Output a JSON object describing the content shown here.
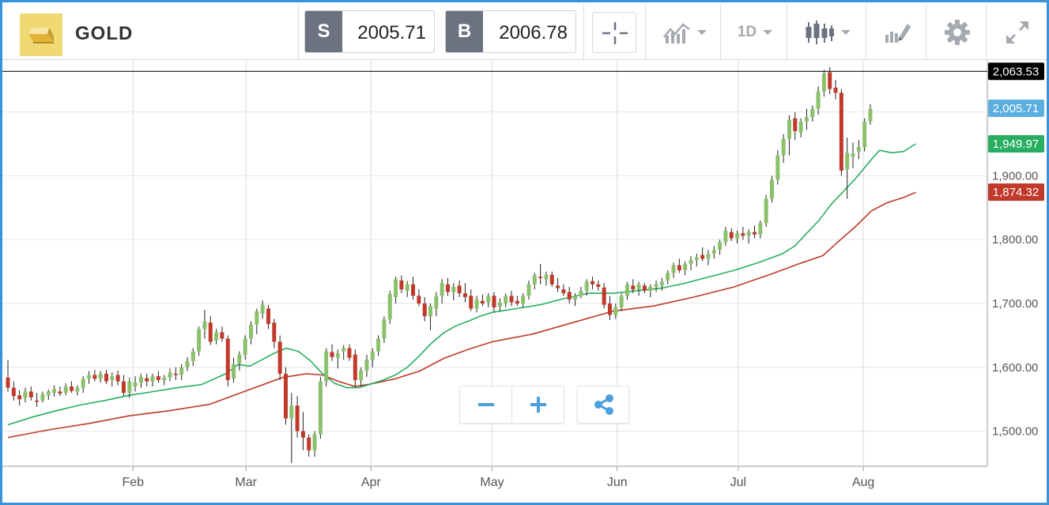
{
  "header": {
    "symbol": "GOLD",
    "sell_label": "S",
    "sell_price": "2005.71",
    "buy_label": "B",
    "buy_price": "2006.78",
    "timeframe": "1D",
    "icons": [
      "gold-bar-icon",
      "crosshair-icon",
      "indicators-icon",
      "candlestick-type-icon",
      "drawing-tools-icon",
      "gear-icon",
      "fullscreen-icon"
    ]
  },
  "price_labels": {
    "high": "2,063.53",
    "current": "2,005.71",
    "ma_fast": "1,949.97",
    "ma_slow": "1,874.32"
  },
  "colors": {
    "frame": "#3a93d8",
    "bull": "#8ac16a",
    "bear": "#c0392b",
    "ma_fast": "#27ae60",
    "ma_slow": "#c0392b",
    "label_high": "#000000",
    "label_current": "#5aaee0",
    "label_ma_fast": "#27ae60",
    "label_ma_slow": "#c0392b",
    "accent": "#4a9fdc"
  },
  "controls": {
    "zoom_out": "zoom-out-icon",
    "zoom_in": "zoom-in-icon",
    "share": "share-icon"
  },
  "chart_data": {
    "type": "candlestick",
    "ylim": [
      1445,
      2080
    ],
    "y_ticks": [
      "1,500.00",
      "1,600.00",
      "1,700.00",
      "1,800.00",
      "1,900.00"
    ],
    "y_tick_values": [
      1500,
      1600,
      1700,
      1800,
      1900
    ],
    "x_ticks": [
      "Feb",
      "Mar",
      "Apr",
      "May",
      "Jun",
      "Jul",
      "Aug"
    ],
    "x_tick_days": [
      31,
      59,
      90,
      120,
      151,
      181,
      212
    ],
    "grid": true,
    "horizontal_line": 2063.53,
    "candle_open_day": 0,
    "candle_step_days": 1.4345,
    "candles": [
      [
        1584,
        1612,
        1562,
        1568
      ],
      [
        1568,
        1578,
        1548,
        1555
      ],
      [
        1556,
        1564,
        1540,
        1550
      ],
      [
        1552,
        1568,
        1545,
        1562
      ],
      [
        1562,
        1570,
        1548,
        1553
      ],
      [
        1548,
        1560,
        1538,
        1546
      ],
      [
        1548,
        1562,
        1545,
        1558
      ],
      [
        1556,
        1565,
        1549,
        1562
      ],
      [
        1560,
        1572,
        1554,
        1566
      ],
      [
        1562,
        1570,
        1555,
        1559
      ],
      [
        1560,
        1575,
        1556,
        1570
      ],
      [
        1570,
        1578,
        1560,
        1563
      ],
      [
        1562,
        1572,
        1556,
        1568
      ],
      [
        1568,
        1586,
        1560,
        1582
      ],
      [
        1582,
        1594,
        1574,
        1588
      ],
      [
        1588,
        1596,
        1578,
        1582
      ],
      [
        1582,
        1594,
        1576,
        1590
      ],
      [
        1590,
        1596,
        1574,
        1578
      ],
      [
        1580,
        1592,
        1570,
        1586
      ],
      [
        1588,
        1595,
        1572,
        1578
      ],
      [
        1578,
        1588,
        1555,
        1560
      ],
      [
        1560,
        1584,
        1552,
        1578
      ],
      [
        1570,
        1586,
        1562,
        1576
      ],
      [
        1576,
        1590,
        1568,
        1585
      ],
      [
        1583,
        1590,
        1570,
        1578
      ],
      [
        1578,
        1590,
        1570,
        1586
      ],
      [
        1586,
        1594,
        1576,
        1580
      ],
      [
        1580,
        1588,
        1572,
        1584
      ],
      [
        1584,
        1598,
        1578,
        1592
      ],
      [
        1590,
        1600,
        1580,
        1588
      ],
      [
        1588,
        1605,
        1580,
        1600
      ],
      [
        1600,
        1616,
        1594,
        1610
      ],
      [
        1610,
        1630,
        1602,
        1625
      ],
      [
        1625,
        1664,
        1618,
        1660
      ],
      [
        1660,
        1690,
        1645,
        1672
      ],
      [
        1670,
        1680,
        1635,
        1640
      ],
      [
        1642,
        1660,
        1636,
        1655
      ],
      [
        1655,
        1664,
        1640,
        1645
      ],
      [
        1645,
        1650,
        1570,
        1580
      ],
      [
        1582,
        1615,
        1576,
        1605
      ],
      [
        1606,
        1625,
        1595,
        1620
      ],
      [
        1620,
        1650,
        1612,
        1645
      ],
      [
        1645,
        1672,
        1636,
        1667
      ],
      [
        1667,
        1692,
        1652,
        1688
      ],
      [
        1684,
        1705,
        1676,
        1698
      ],
      [
        1692,
        1698,
        1660,
        1668
      ],
      [
        1670,
        1676,
        1630,
        1640
      ],
      [
        1640,
        1650,
        1580,
        1590
      ],
      [
        1590,
        1600,
        1510,
        1520
      ],
      [
        1520,
        1560,
        1450,
        1540
      ],
      [
        1540,
        1555,
        1490,
        1500
      ],
      [
        1500,
        1530,
        1470,
        1490
      ],
      [
        1490,
        1495,
        1460,
        1470
      ],
      [
        1470,
        1500,
        1460,
        1495
      ],
      [
        1495,
        1585,
        1488,
        1578
      ],
      [
        1578,
        1630,
        1570,
        1625
      ],
      [
        1624,
        1636,
        1610,
        1616
      ],
      [
        1615,
        1628,
        1598,
        1622
      ],
      [
        1625,
        1635,
        1612,
        1630
      ],
      [
        1630,
        1636,
        1610,
        1615
      ],
      [
        1620,
        1628,
        1570,
        1580
      ],
      [
        1580,
        1600,
        1570,
        1595
      ],
      [
        1595,
        1620,
        1585,
        1612
      ],
      [
        1612,
        1630,
        1600,
        1625
      ],
      [
        1625,
        1650,
        1618,
        1645
      ],
      [
        1645,
        1680,
        1638,
        1675
      ],
      [
        1675,
        1720,
        1668,
        1715
      ],
      [
        1710,
        1742,
        1700,
        1738
      ],
      [
        1736,
        1744,
        1716,
        1722
      ],
      [
        1720,
        1735,
        1710,
        1730
      ],
      [
        1730,
        1742,
        1706,
        1712
      ],
      [
        1712,
        1722,
        1696,
        1700
      ],
      [
        1700,
        1710,
        1672,
        1680
      ],
      [
        1680,
        1700,
        1658,
        1696
      ],
      [
        1692,
        1718,
        1680,
        1712
      ],
      [
        1712,
        1738,
        1700,
        1732
      ],
      [
        1730,
        1740,
        1712,
        1718
      ],
      [
        1718,
        1732,
        1705,
        1726
      ],
      [
        1728,
        1736,
        1710,
        1716
      ],
      [
        1716,
        1732,
        1702,
        1710
      ],
      [
        1712,
        1722,
        1688,
        1692
      ],
      [
        1692,
        1712,
        1686,
        1706
      ],
      [
        1704,
        1714,
        1696,
        1700
      ],
      [
        1702,
        1716,
        1694,
        1712
      ],
      [
        1712,
        1718,
        1686,
        1694
      ],
      [
        1695,
        1708,
        1688,
        1702
      ],
      [
        1700,
        1716,
        1694,
        1712
      ],
      [
        1712,
        1720,
        1696,
        1702
      ],
      [
        1704,
        1712,
        1696,
        1700
      ],
      [
        1700,
        1716,
        1694,
        1712
      ],
      [
        1712,
        1736,
        1706,
        1730
      ],
      [
        1730,
        1748,
        1722,
        1744
      ],
      [
        1742,
        1762,
        1730,
        1740
      ],
      [
        1738,
        1750,
        1728,
        1745
      ],
      [
        1745,
        1750,
        1726,
        1730
      ],
      [
        1728,
        1740,
        1718,
        1724
      ],
      [
        1722,
        1730,
        1712,
        1716
      ],
      [
        1718,
        1726,
        1700,
        1706
      ],
      [
        1706,
        1716,
        1696,
        1712
      ],
      [
        1712,
        1726,
        1708,
        1720
      ],
      [
        1720,
        1738,
        1712,
        1734
      ],
      [
        1735,
        1742,
        1722,
        1730
      ],
      [
        1730,
        1736,
        1720,
        1726
      ],
      [
        1725,
        1732,
        1692,
        1698
      ],
      [
        1700,
        1712,
        1674,
        1682
      ],
      [
        1682,
        1700,
        1676,
        1694
      ],
      [
        1694,
        1716,
        1688,
        1712
      ],
      [
        1712,
        1734,
        1706,
        1730
      ],
      [
        1728,
        1738,
        1716,
        1722
      ],
      [
        1722,
        1734,
        1712,
        1730
      ],
      [
        1728,
        1732,
        1716,
        1720
      ],
      [
        1720,
        1730,
        1710,
        1726
      ],
      [
        1726,
        1736,
        1718,
        1730
      ],
      [
        1728,
        1740,
        1720,
        1734
      ],
      [
        1736,
        1752,
        1730,
        1748
      ],
      [
        1748,
        1764,
        1740,
        1760
      ],
      [
        1760,
        1770,
        1748,
        1752
      ],
      [
        1752,
        1766,
        1744,
        1762
      ],
      [
        1762,
        1774,
        1752,
        1768
      ],
      [
        1768,
        1778,
        1758,
        1772
      ],
      [
        1776,
        1788,
        1766,
        1770
      ],
      [
        1770,
        1784,
        1760,
        1778
      ],
      [
        1778,
        1790,
        1770,
        1784
      ],
      [
        1784,
        1800,
        1776,
        1796
      ],
      [
        1796,
        1820,
        1790,
        1814
      ],
      [
        1812,
        1818,
        1798,
        1802
      ],
      [
        1802,
        1814,
        1794,
        1810
      ],
      [
        1810,
        1820,
        1800,
        1806
      ],
      [
        1806,
        1816,
        1794,
        1812
      ],
      [
        1812,
        1822,
        1802,
        1808
      ],
      [
        1808,
        1830,
        1802,
        1826
      ],
      [
        1826,
        1870,
        1820,
        1864
      ],
      [
        1864,
        1900,
        1858,
        1894
      ],
      [
        1894,
        1940,
        1886,
        1932
      ],
      [
        1932,
        1965,
        1920,
        1958
      ],
      [
        1958,
        1995,
        1932,
        1988
      ],
      [
        1990,
        2000,
        1956,
        1970
      ],
      [
        1968,
        1990,
        1960,
        1985
      ],
      [
        1985,
        2005,
        1972,
        1992
      ],
      [
        1992,
        2010,
        1985,
        2005
      ],
      [
        2005,
        2040,
        1996,
        2032
      ],
      [
        2032,
        2066,
        2024,
        2060
      ],
      [
        2062,
        2070,
        2028,
        2036
      ],
      [
        2038,
        2050,
        2020,
        2030
      ],
      [
        2030,
        2036,
        1900,
        1908
      ],
      [
        1910,
        1960,
        1864,
        1936
      ],
      [
        1930,
        1952,
        1912,
        1935
      ],
      [
        1938,
        1956,
        1926,
        1945
      ],
      [
        1945,
        1990,
        1938,
        1985
      ],
      [
        1985,
        2012,
        1980,
        2005
      ]
    ],
    "ma_fast": [
      [
        0,
        1510
      ],
      [
        6,
        1522
      ],
      [
        12,
        1532
      ],
      [
        18,
        1541
      ],
      [
        24,
        1548
      ],
      [
        30,
        1556
      ],
      [
        36,
        1562
      ],
      [
        42,
        1568
      ],
      [
        48,
        1573
      ],
      [
        54,
        1590
      ],
      [
        57,
        1604
      ],
      [
        60,
        1602
      ],
      [
        63,
        1612
      ],
      [
        66,
        1622
      ],
      [
        69,
        1630
      ],
      [
        72,
        1625
      ],
      [
        75,
        1610
      ],
      [
        78,
        1590
      ],
      [
        81,
        1575
      ],
      [
        84,
        1568
      ],
      [
        87,
        1568
      ],
      [
        90,
        1574
      ],
      [
        93,
        1580
      ],
      [
        96,
        1588
      ],
      [
        99,
        1600
      ],
      [
        102,
        1618
      ],
      [
        105,
        1638
      ],
      [
        108,
        1654
      ],
      [
        111,
        1665
      ],
      [
        114,
        1672
      ],
      [
        117,
        1680
      ],
      [
        120,
        1686
      ],
      [
        126,
        1692
      ],
      [
        132,
        1698
      ],
      [
        138,
        1708
      ],
      [
        144,
        1716
      ],
      [
        150,
        1716
      ],
      [
        156,
        1720
      ],
      [
        162,
        1724
      ],
      [
        168,
        1732
      ],
      [
        174,
        1742
      ],
      [
        180,
        1752
      ],
      [
        186,
        1764
      ],
      [
        192,
        1778
      ],
      [
        195,
        1790
      ],
      [
        198,
        1810
      ],
      [
        201,
        1830
      ],
      [
        204,
        1855
      ],
      [
        207,
        1875
      ],
      [
        210,
        1895
      ],
      [
        213,
        1918
      ],
      [
        216,
        1940
      ],
      [
        219,
        1936
      ],
      [
        222,
        1938
      ],
      [
        225,
        1950
      ]
    ],
    "ma_slow": [
      [
        0,
        1490
      ],
      [
        10,
        1502
      ],
      [
        20,
        1512
      ],
      [
        30,
        1524
      ],
      [
        40,
        1532
      ],
      [
        50,
        1542
      ],
      [
        56,
        1556
      ],
      [
        62,
        1570
      ],
      [
        68,
        1584
      ],
      [
        74,
        1590
      ],
      [
        78,
        1588
      ],
      [
        82,
        1578
      ],
      [
        86,
        1570
      ],
      [
        90,
        1574
      ],
      [
        96,
        1582
      ],
      [
        102,
        1594
      ],
      [
        108,
        1614
      ],
      [
        114,
        1628
      ],
      [
        120,
        1640
      ],
      [
        130,
        1652
      ],
      [
        140,
        1670
      ],
      [
        150,
        1688
      ],
      [
        160,
        1696
      ],
      [
        170,
        1710
      ],
      [
        180,
        1726
      ],
      [
        190,
        1748
      ],
      [
        196,
        1762
      ],
      [
        202,
        1775
      ],
      [
        206,
        1798
      ],
      [
        210,
        1820
      ],
      [
        214,
        1845
      ],
      [
        218,
        1858
      ],
      [
        222,
        1866
      ],
      [
        225,
        1874
      ]
    ],
    "x_day_range": [
      0,
      240
    ]
  }
}
